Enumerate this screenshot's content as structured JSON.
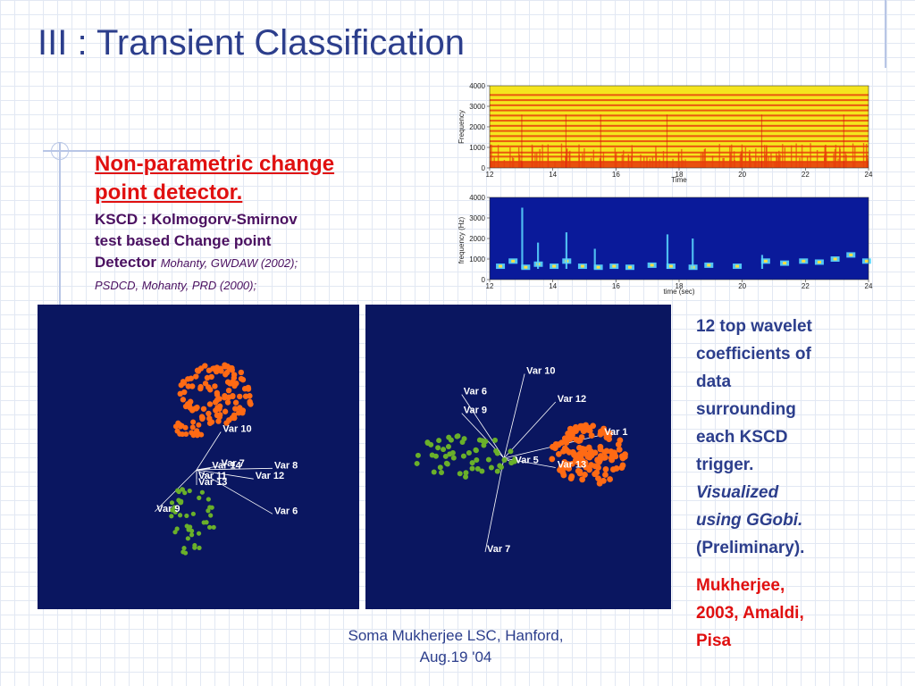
{
  "slide": {
    "title": "III : Transient Classification",
    "bullet": {
      "heading_line1": "Non-parametric change",
      "heading_line2": "point detector.",
      "body_line1": "KSCD : Kolmogorv-Smirnov",
      "body_line2": "test based Change point",
      "body_line3": "Detector",
      "cite1": "Mohanty, GWDAW (2002);",
      "cite2": "PSDCD, Mohanty, PRD (2000);"
    },
    "right_text": {
      "line1": "12 top wavelet",
      "line2": "coefficients of",
      "line3": "data",
      "line4": "surrounding",
      "line5": "each KSCD",
      "line6": "trigger.",
      "italic1": "Visualized",
      "italic2": "using GGobi.",
      "line7": "(Preliminary)."
    },
    "reference": {
      "line1": "Mukherjee,",
      "line2": "2003, Amaldi,",
      "line3": "Pisa"
    },
    "footer": {
      "line1": "Soma Mukherjee LSC, Hanford,",
      "line2": "Aug.19 '04"
    }
  },
  "chart_data": [
    {
      "type": "heatmap",
      "ylabel": "Frequency",
      "xlabel": "Time",
      "x_ticks": [
        "12",
        "14",
        "16",
        "18",
        "20",
        "22",
        "24"
      ],
      "y_ticks": [
        "0",
        "1000",
        "2000",
        "3000",
        "4000"
      ],
      "xlim": [
        12,
        24
      ],
      "ylim": [
        0,
        4000
      ],
      "colors": {
        "background": "#f5e51e",
        "line": "#e8400c",
        "hot": "#d81010"
      },
      "line_frequencies": [
        300,
        550,
        750,
        1050,
        1300,
        1550,
        1800,
        2050,
        2300,
        2550,
        2800,
        3050,
        3300,
        3550
      ]
    },
    {
      "type": "heatmap",
      "ylabel": "frequency (Hz)",
      "xlabel": "time (sec)",
      "x_ticks": [
        "12",
        "14",
        "16",
        "18",
        "20",
        "22",
        "24"
      ],
      "y_ticks": [
        "0",
        "1000",
        "2000",
        "3000",
        "4000"
      ],
      "xlim": [
        12,
        24
      ],
      "ylim": [
        0,
        4000
      ],
      "colors": {
        "background": "#0a1a9a",
        "event": "#5ad8ff",
        "peak": "#ffe040"
      }
    },
    {
      "type": "scatter",
      "colors": {
        "background": "#0a1660",
        "cluster_a": "#ff6a14",
        "cluster_b": "#6ab02a",
        "axes": "#ffffff"
      },
      "axis_labels": [
        {
          "label": "Var 10",
          "dx": 0.32,
          "dy": -0.5
        },
        {
          "label": "Var 7",
          "dx": 0.3,
          "dy": -0.05
        },
        {
          "label": "Var 14",
          "dx": 0.18,
          "dy": -0.02
        },
        {
          "label": "Var 8",
          "dx": 1.0,
          "dy": -0.02
        },
        {
          "label": "Var 12",
          "dx": 0.75,
          "dy": 0.12
        },
        {
          "label": "Var 11",
          "dx": 0.0,
          "dy": 0.12
        },
        {
          "label": "Var 13",
          "dx": 0.0,
          "dy": 0.2
        },
        {
          "label": "Var 9",
          "dx": -0.55,
          "dy": 0.55
        },
        {
          "label": "Var 6",
          "dx": 1.0,
          "dy": 0.58
        }
      ]
    },
    {
      "type": "scatter",
      "colors": {
        "background": "#0a1660",
        "cluster_a": "#ff6a14",
        "cluster_b": "#6ab02a",
        "axes": "#ffffff"
      },
      "axis_labels": [
        {
          "label": "Var 10",
          "dx": 0.22,
          "dy": -0.9
        },
        {
          "label": "Var 6",
          "dx": -0.45,
          "dy": -0.68
        },
        {
          "label": "Var 12",
          "dx": 0.55,
          "dy": -0.6
        },
        {
          "label": "Var 9",
          "dx": -0.45,
          "dy": -0.48
        },
        {
          "label": "Var 1",
          "dx": 1.05,
          "dy": -0.25
        },
        {
          "label": "Var 5",
          "dx": 0.1,
          "dy": 0.05
        },
        {
          "label": "Var 13",
          "dx": 0.55,
          "dy": 0.1
        },
        {
          "label": "Var 7",
          "dx": -0.2,
          "dy": 1.0
        }
      ]
    }
  ]
}
